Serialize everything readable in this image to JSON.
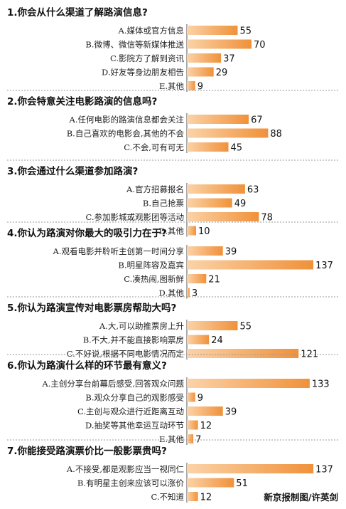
{
  "chart_data": {
    "type": "bar",
    "orientation": "horizontal",
    "bar_color": "#f0913a",
    "bar_color_light": "#fbd3a8",
    "groups": [
      {
        "title": "1.你会从什么渠道了解路演信息?",
        "categories": [
          "A.媒体或官方信息",
          "B.微博、微信等新媒体推送",
          "C.影院方了解到资讯",
          "D.好友等身边朋友相告",
          "E.其他"
        ],
        "values": [
          55,
          70,
          37,
          29,
          9
        ]
      },
      {
        "title": "2.你会特意关注电影路演的信息吗?",
        "categories": [
          "A.任何电影的路演信息都会关注",
          "B.自己喜欢的电影会,其他的不会",
          "C.不会,可有可无"
        ],
        "values": [
          67,
          88,
          45
        ]
      },
      {
        "title": "3.你会通过什么渠道参加路演?",
        "categories": [
          "A.官方招募报名",
          "B.自己抢票",
          "C.参加影城或观影团等活动",
          "D.其他"
        ],
        "values": [
          63,
          49,
          78,
          10
        ]
      },
      {
        "title": "4.你认为路演对你最大的吸引力在于?",
        "categories": [
          "A.观看电影并聆听主创第一时间分享",
          "B.明星阵容及嘉宾",
          "C.凑热闹,图新鲜",
          "D.其他"
        ],
        "values": [
          39,
          137,
          21,
          3
        ]
      },
      {
        "title": "5.你认为路演宣传对电影票房帮助大吗?",
        "categories": [
          "A.大,可以助推票房上升",
          "B.不大,并不能直接影响票房",
          "C.不好说,根据不同电影情况而定"
        ],
        "values": [
          55,
          24,
          121
        ]
      },
      {
        "title": "6.你认为路演什么样的环节最有意义?",
        "categories": [
          "A.主创分享台前幕后感受,回答观众问题",
          "B.观众分享自己的观影感受",
          "C.主创与观众进行近距离互动",
          "D.抽奖等其他幸运互动环节",
          "E.其他"
        ],
        "values": [
          133,
          9,
          39,
          12,
          7
        ]
      },
      {
        "title": "7.你能接受路演票价比一般影票贵吗?",
        "categories": [
          "A.不接受,都是观影应当一视同仁",
          "B.有明星主创来应该可以涨价",
          "C.不知道"
        ],
        "values": [
          137,
          51,
          12
        ]
      }
    ],
    "credit": "新京报制图/许英剑"
  }
}
